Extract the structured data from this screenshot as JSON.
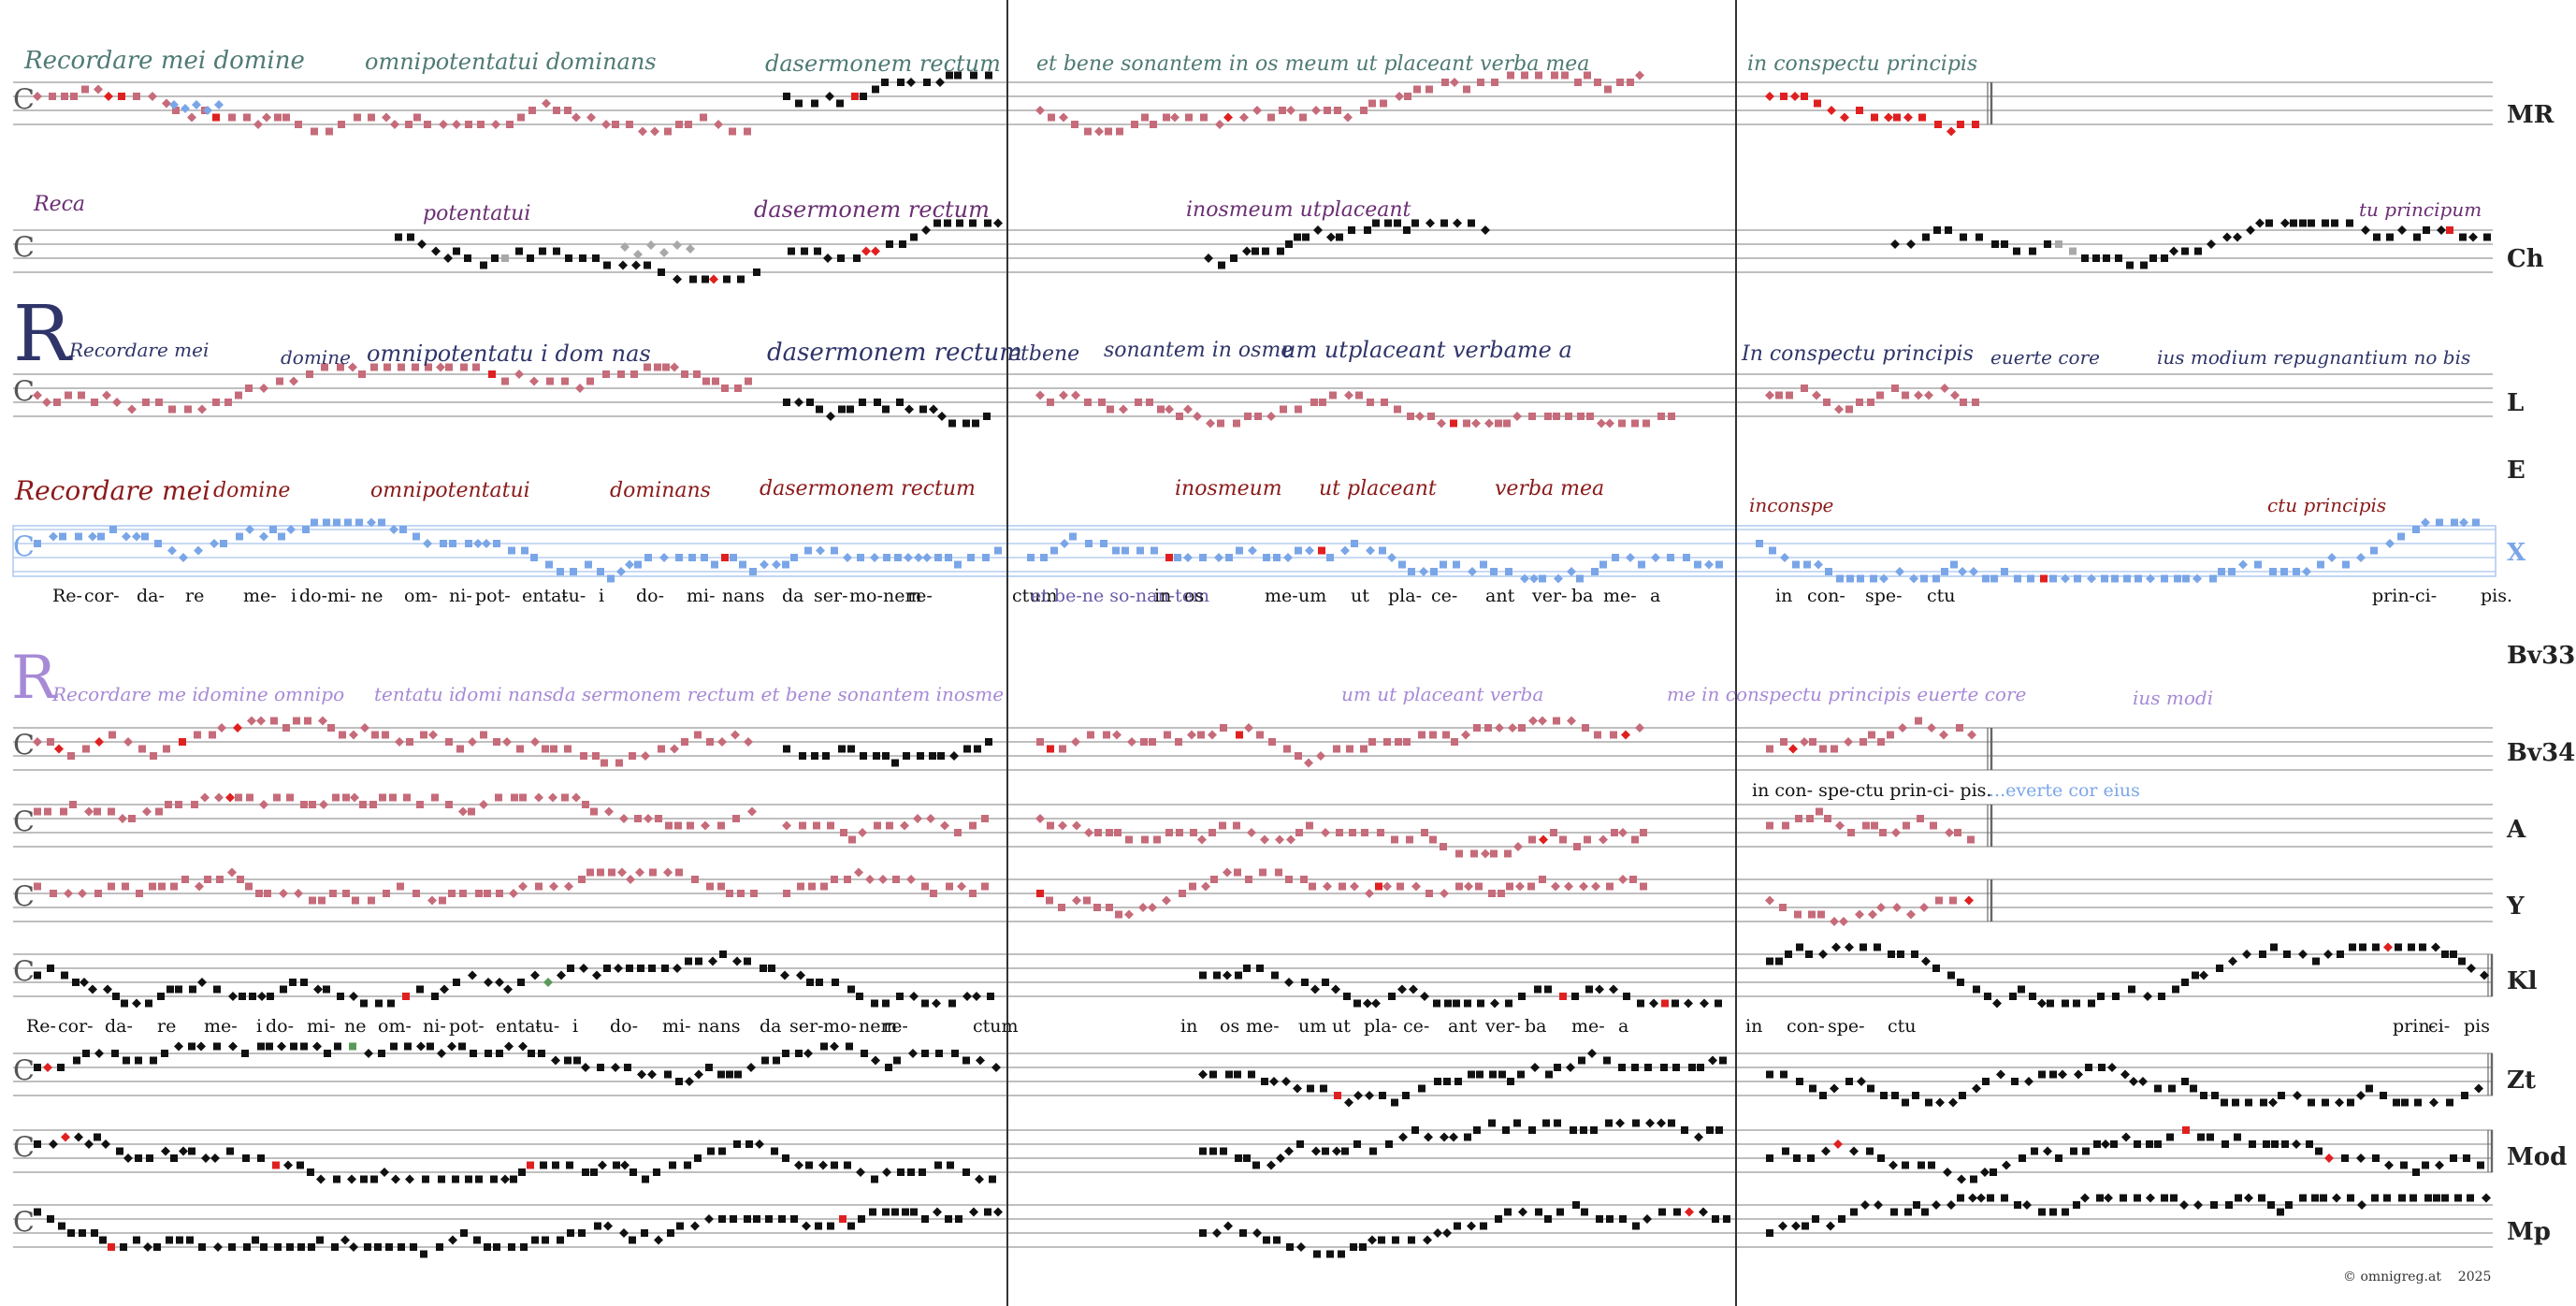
{
  "sources": [
    {
      "label": "MR",
      "color": "#4f7a74"
    },
    {
      "label": "Ch",
      "color": "#6b2f73"
    },
    {
      "label": "L",
      "color": "#2f3569"
    },
    {
      "label": "E",
      "color": "#8b1a1a"
    },
    {
      "label": "X",
      "color": "#7aa6e8"
    },
    {
      "label": "Bv33",
      "color": "#a78ad6"
    },
    {
      "label": "Bv34",
      "color": "#222222"
    },
    {
      "label": "A",
      "color": "#222222"
    },
    {
      "label": "Y",
      "color": "#222222"
    },
    {
      "label": "Kl",
      "color": "#222222"
    },
    {
      "label": "Zt",
      "color": "#222222"
    },
    {
      "label": "Mod",
      "color": "#222222"
    },
    {
      "label": "Mp",
      "color": "#222222"
    }
  ],
  "manuscript_text": {
    "mr": [
      "Recordare mei domine",
      "omnipotentatui dominans",
      "dasermonem rectum",
      "et bene sonantem in os meum ut placeant verba mea",
      "in conspectu principis"
    ],
    "ch": [
      "Reca",
      "potentatui",
      "dasermonem rectum",
      "inosmeum utplaceant",
      "tu principum"
    ],
    "l": [
      "Recordare mei",
      "domine",
      "omnipotentatu i dom nas",
      "dasermonem rectum",
      "etbene",
      "sonantem in osme",
      "um utplaceant verbame a",
      "In conspectu principis",
      "euerte core",
      "ius modium repugnantium no bis"
    ],
    "e": [
      "Recordare mei",
      "domine",
      "omnipotentatui",
      "dominans",
      "dasermonem rectum",
      "inosmeum",
      "ut placeant",
      "verba mea",
      "inconspe",
      "ctu principis"
    ],
    "bv33": [
      "Recordare me idomine omnipo",
      "tentatu idomi nansda sermonem rectum et bene sonantem inosme",
      "um ut placeant verba",
      "me in conspectu principis euerte core",
      "ius modi"
    ]
  },
  "lyrics_x": [
    {
      "text": "Re-",
      "black": true
    },
    {
      "text": "cor-",
      "black": true
    },
    {
      "text": "da-",
      "black": true
    },
    {
      "text": "re",
      "black": true
    },
    {
      "text": "me-",
      "black": true
    },
    {
      "text": "i",
      "black": true
    },
    {
      "text": "do-",
      "black": true
    },
    {
      "text": "mi-",
      "black": true
    },
    {
      "text": "ne",
      "black": true
    },
    {
      "text": "om-",
      "black": true
    },
    {
      "text": "ni-",
      "black": true
    },
    {
      "text": "pot-",
      "black": true
    },
    {
      "text": "enta-",
      "black": true
    },
    {
      "text": "tu-",
      "black": true
    },
    {
      "text": "i",
      "black": true
    },
    {
      "text": "do-",
      "black": true
    },
    {
      "text": "mi-",
      "black": true
    },
    {
      "text": "nans",
      "black": true
    },
    {
      "text": "da",
      "black": true
    },
    {
      "text": "ser-",
      "black": true
    },
    {
      "text": "mo-",
      "black": true
    },
    {
      "text": "nem",
      "black": true
    },
    {
      "text": "re-",
      "black": true
    },
    {
      "text": "ctum",
      "black": true
    },
    {
      "text": "et be-ne so-nan-tem",
      "black": false
    },
    {
      "text": "in",
      "black": true
    },
    {
      "text": "os",
      "black": true
    },
    {
      "text": "me-",
      "black": true
    },
    {
      "text": "um",
      "black": true
    },
    {
      "text": "ut",
      "black": true
    },
    {
      "text": "pla-",
      "black": true
    },
    {
      "text": "ce-",
      "black": true
    },
    {
      "text": "ant",
      "black": true
    },
    {
      "text": "ver-",
      "black": true
    },
    {
      "text": "ba",
      "black": true
    },
    {
      "text": "me-",
      "black": true
    },
    {
      "text": "a",
      "black": true
    },
    {
      "text": "in",
      "black": true
    },
    {
      "text": "con-",
      "black": true
    },
    {
      "text": "spe-",
      "black": true
    },
    {
      "text": "ctu",
      "black": true
    },
    {
      "text": "prin-",
      "black": true
    },
    {
      "text": "ci-",
      "black": true
    },
    {
      "text": "pis.",
      "black": true
    }
  ],
  "lyrics_bv34": {
    "text": "in con- spe-ctu prin-ci- pis.",
    "continuation": "...everte cor eius"
  },
  "lyrics_kl": [
    "Re-",
    "cor-",
    "da-",
    "re",
    "me-",
    "i",
    "do-",
    "mi-",
    "ne",
    "om-",
    "ni-",
    "pot-",
    "enta-",
    "tu-",
    "i",
    "do-",
    "mi-",
    "nans",
    "da",
    "ser-",
    "mo-",
    "nem",
    "re-",
    "ctum",
    "in",
    "os",
    "me-",
    "um",
    "ut",
    "pla-",
    "ce-",
    "ant",
    "ver-",
    "ba",
    "me-",
    "a",
    "in",
    "con-",
    "spe-",
    "ctu",
    "prin-",
    "ci-",
    "pis"
  ],
  "copyright": {
    "symbol": "©",
    "site": "omnigreg.at",
    "year": "2025"
  },
  "colors": {
    "mr_neume": "#c66b7a",
    "red": "#e02020",
    "blue": "#7aa6e8",
    "grey": "#a8a8a8",
    "green": "#5a9a5a",
    "black": "#111111",
    "staff": "#999999"
  }
}
